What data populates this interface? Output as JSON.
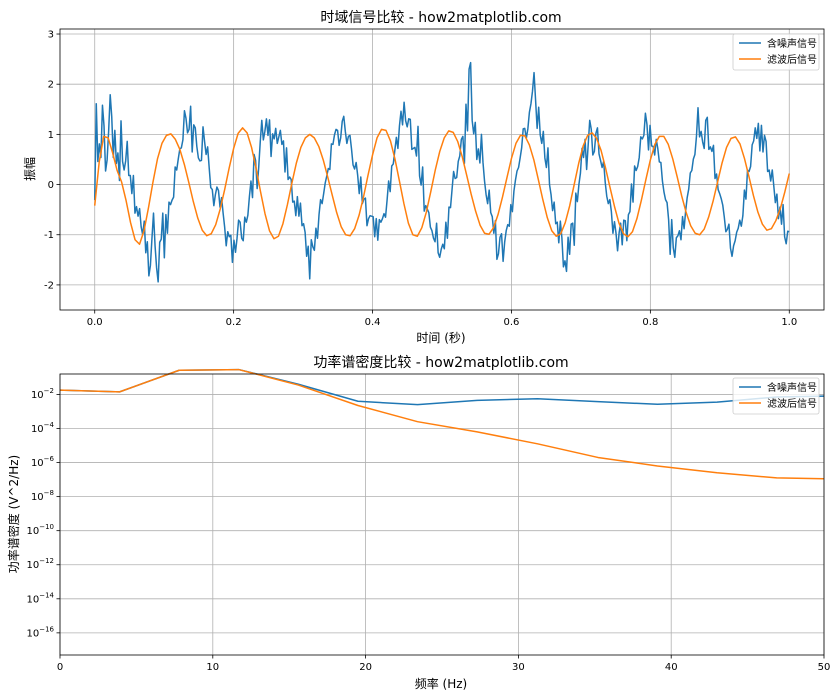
{
  "figure": {
    "top_title": "时域信号比较 - how2matplotlib.com",
    "bottom_title": "功率谱密度比较 - how2matplotlib.com"
  },
  "colors": {
    "noisy": "#1f77b4",
    "filtered": "#ff7f0e",
    "grid": "#b0b0b0"
  },
  "chart_data": [
    {
      "type": "line",
      "title": "时域信号比较 - how2matplotlib.com",
      "xlabel": "时间 (秒)",
      "ylabel": "振幅",
      "xlim": [
        -0.05,
        1.05
      ],
      "ylim": [
        -2.5,
        3.1
      ],
      "xticks": [
        0.0,
        0.2,
        0.4,
        0.6,
        0.8,
        1.0
      ],
      "xtick_labels": [
        "0.0",
        "0.2",
        "0.4",
        "0.6",
        "0.8",
        "1.0"
      ],
      "yticks": [
        -2,
        -1,
        0,
        1,
        2,
        3
      ],
      "ytick_labels": [
        "-2",
        "-1",
        "0",
        "1",
        "2",
        "3"
      ],
      "grid": true,
      "legend_position": "top-right",
      "series": [
        {
          "name": "含噪声信号",
          "color": "#1f77b4",
          "x_start": 0.0,
          "x_end": 1.0,
          "values": [
            -0.31,
            1.61,
            0.46,
            0.81,
            0.54,
            1.58,
            1.17,
            0.27,
            0.49,
            1.07,
            1.79,
            1.35,
            0.54,
            1.08,
            0.42,
            0.63,
            0.08,
            1.27,
            0.46,
            0.29,
            0.47,
            0.86,
            0.18,
            0.18,
            -0.18,
            0.18,
            -0.57,
            -0.44,
            -0.63,
            -0.48,
            -0.84,
            -1.0,
            -0.73,
            -1.36,
            -1.14,
            -1.82,
            -1.61,
            -1.07,
            -0.57,
            -1.22,
            -1.66,
            -1.94,
            -1.15,
            -1.09,
            -0.57,
            -1.46,
            -0.6,
            -0.97,
            -0.35,
            -0.4,
            -0.31,
            -0.25,
            0.35,
            0.29,
            0.51,
            0.71,
            0.73,
            0.89,
            1.47,
            1.32,
            1.03,
            1.1,
            1.56,
            0.65,
            1.19,
            1.13,
            0.76,
            0.53,
            0.47,
            0.48,
            1.15,
            0.86,
            0.6,
            0.75,
            0.33,
            -0.06,
            -0.1,
            -0.42,
            -0.2,
            -0.05,
            -0.12,
            -0.45,
            -0.26,
            -0.57,
            -0.85,
            -1.22,
            -0.94,
            -1.04,
            -1.01,
            -1.55,
            -1.11,
            -1.35,
            -1.07,
            -0.71,
            -0.75,
            -1.07,
            -1.12,
            -0.65,
            -0.75,
            -0.61,
            -0.24,
            0.07,
            -0.26,
            0.6,
            0.48,
            -0.08,
            0.34,
            0.85,
            1.28,
            0.89,
            1.06,
            1.31,
            0.98,
            1.29,
            0.56,
            1.01,
            0.91,
            1.12,
            0.82,
            0.95,
            1.08,
            0.8,
            0.87,
            0.25,
            0.73,
            0.1,
            0.15,
            0.1,
            -0.35,
            -0.33,
            -0.62,
            -0.24,
            -0.63,
            -0.37,
            -0.82,
            -0.78,
            -0.95,
            -1.43,
            -1.23,
            -1.88,
            -1.1,
            -1.24,
            -1.31,
            -0.87,
            -1.07,
            -0.6,
            -0.3,
            -0.38,
            -0.18,
            0.03,
            0.17,
            0.32,
            0.3,
            0.81,
            0.8,
            0.99,
            1.1,
            1.08,
            0.78,
            0.93,
            1.26,
            1.36,
            1.06,
            0.82,
            0.96,
            0.98,
            0.71,
            0.39,
            0.31,
            0.44,
            0.18,
            -0.18,
            0.15,
            -0.38,
            -0.29,
            -0.27,
            -0.82,
            -0.68,
            -0.62,
            -0.63,
            -0.64,
            -1.04,
            -0.68,
            -1.11,
            -0.7,
            -0.75,
            -0.68,
            -0.58,
            -0.65,
            -0.31,
            0.07,
            -0.14,
            0.37,
            0.41,
            0.68,
            0.94,
            0.72,
            1.17,
            1.46,
            1.19,
            1.64,
            1.27,
            1.15,
            1.31,
            1.3,
            0.7,
            0.72,
            0.74,
            0.57,
            1.16,
            0.17,
            -0.01,
            0.35,
            -0.53,
            -0.42,
            -0.49,
            -0.56,
            -0.85,
            -0.92,
            -1.07,
            -1.14,
            -0.77,
            -1.36,
            -1.45,
            -1.29,
            -1.19,
            -1.28,
            -0.75,
            -1.07,
            -0.45,
            -0.46,
            -0.1,
            0.26,
            0.12,
            0.14,
            0.46,
            0.57,
            0.9,
            0.96,
            0.42,
            1.6,
            1.07,
            2.3,
            2.43,
            1.28,
            1.01,
            1.24,
            0.5,
            0.71,
            0.43,
            1.0,
            0.44,
            0.07,
            -0.2,
            -0.38,
            -0.11,
            -0.56,
            -0.64,
            -0.97,
            -0.72,
            -1.49,
            -1.38,
            -1.05,
            -0.98,
            -1.53,
            -1.15,
            -0.92,
            -0.8,
            -0.83,
            -0.4,
            -0.54,
            -0.13,
            0.09,
            0.27,
            0.34,
            0.53,
            0.73,
            1.11,
            1.12,
            0.92,
            1.11,
            1.44,
            1.61,
            1.86,
            2.23,
            1.68,
            1.12,
            1.54,
            0.99,
            0.82,
            1.06,
            0.53,
            0.34,
            0.73,
            0.0,
            -0.2,
            -0.52,
            -0.35,
            -0.78,
            -0.75,
            -1.16,
            -0.73,
            -1.06,
            -1.64,
            -1.52,
            -1.73,
            -1.05,
            -1.39,
            -0.79,
            -0.77,
            -1.21,
            -0.17,
            -0.34,
            0.0,
            0.23,
            0.72,
            0.54,
            0.9,
            0.3,
            0.79,
            1.28,
            1.1,
            0.59,
            0.66,
            1.02,
            1.13,
            0.61,
            0.48,
            0.34,
            0.46,
            0.05,
            -0.23,
            -0.38,
            -0.3,
            -0.54,
            -0.97,
            -0.74,
            -0.97,
            -1.32,
            -0.96,
            -0.77,
            -1.2,
            -0.71,
            -0.72,
            -1.12,
            -0.6,
            -0.54,
            0.01,
            -0.35,
            0.37,
            0.28,
            0.36,
            0.54,
            0.95,
            0.91,
            0.98,
            1.42,
            1.2,
            0.69,
            1.18,
            0.77,
            0.76,
            0.59,
            0.9,
            0.72,
            0.45,
            0.44,
            0.07,
            -0.15,
            -0.3,
            -0.36,
            -0.7,
            -1.39,
            -0.7,
            -1.26,
            -1.45,
            -1.06,
            -1.02,
            -0.92,
            -1.1,
            -0.64,
            -0.88,
            -0.53,
            -0.26,
            -0.09,
            0.23,
            0.28,
            0.51,
            0.6,
            0.96,
            1.53,
            0.95,
            1.06,
            0.85,
            0.72,
            1.28,
            1.34,
            0.7,
            0.75,
            0.66,
            0.78,
            0.12,
            0.21,
            -0.1,
            -0.18,
            -0.28,
            -0.41,
            -0.65,
            -0.94,
            -0.89,
            -0.79,
            -1.27,
            -1.43,
            -1.22,
            -1.12,
            -0.95,
            -0.87,
            -0.71,
            -0.83,
            -0.62,
            -0.11,
            -0.29,
            0.29,
            0.26,
            0.36,
            0.79,
            0.87,
            1.13,
            0.92,
            1.22,
            0.67,
            1.18,
            0.65,
            0.98,
            0.86,
            0.26,
            0.29,
            0.07,
            0.29,
            -0.03,
            -0.36,
            -0.19,
            -0.68,
            -0.45,
            -0.79,
            -0.4,
            -1.04,
            -1.18,
            -0.93,
            -0.94
          ],
          "note": "values sampled evenly between x_start and x_end"
        },
        {
          "name": "滤波后信号",
          "color": "#ff7f0e",
          "x_start": 0.0,
          "x_end": 1.0,
          "values": [
            -0.42,
            0.45,
            0.96,
            0.93,
            0.63,
            0.28,
            0.05,
            -0.32,
            -0.76,
            -1.1,
            -1.19,
            -0.92,
            -0.46,
            0.05,
            0.51,
            0.82,
            0.98,
            1.01,
            0.9,
            0.7,
            0.4,
            0.04,
            -0.34,
            -0.67,
            -0.91,
            -1.02,
            -0.98,
            -0.8,
            -0.49,
            -0.1,
            0.33,
            0.72,
            1.02,
            1.13,
            1.03,
            0.74,
            0.33,
            -0.14,
            -0.58,
            -0.92,
            -1.08,
            -1.03,
            -0.78,
            -0.4,
            0.03,
            0.43,
            0.74,
            0.93,
            1.0,
            0.93,
            0.76,
            0.49,
            0.15,
            -0.21,
            -0.56,
            -0.84,
            -1.0,
            -1.02,
            -0.88,
            -0.61,
            -0.24,
            0.19,
            0.59,
            0.93,
            1.1,
            1.08,
            0.87,
            0.51,
            0.07,
            -0.38,
            -0.77,
            -1.0,
            -1.03,
            -0.86,
            -0.55,
            -0.14,
            0.29,
            0.66,
            0.93,
            1.07,
            1.04,
            0.86,
            0.56,
            0.19,
            -0.19,
            -0.53,
            -0.81,
            -0.97,
            -0.99,
            -0.86,
            -0.6,
            -0.25,
            0.14,
            0.52,
            0.82,
            0.98,
            0.97,
            0.79,
            0.49,
            0.1,
            -0.3,
            -0.66,
            -0.92,
            -1.03,
            -0.98,
            -0.76,
            -0.42,
            0.0,
            0.42,
            0.77,
            0.98,
            1.03,
            0.92,
            0.68,
            0.33,
            -0.06,
            -0.44,
            -0.77,
            -0.98,
            -1.04,
            -0.94,
            -0.68,
            -0.31,
            0.1,
            0.49,
            0.8,
            0.96,
            0.96,
            0.8,
            0.51,
            0.15,
            -0.23,
            -0.56,
            -0.82,
            -0.97,
            -1.0,
            -0.89,
            -0.65,
            -0.33,
            0.05,
            0.43,
            0.74,
            0.92,
            0.95,
            0.81,
            0.52,
            0.16,
            -0.22,
            -0.55,
            -0.79,
            -0.91,
            -0.88,
            -0.72,
            -0.48,
            -0.15,
            0.22
          ],
          "note": "values sampled evenly between x_start and x_end"
        }
      ]
    },
    {
      "type": "line",
      "title": "功率谱密度比较 - how2matplotlib.com",
      "xlabel": "频率 (Hz)",
      "ylabel": "功率谱密度 (V^2/Hz)",
      "xlim": [
        0,
        50
      ],
      "ylim_log10": [
        -17.3,
        -0.8
      ],
      "log_y": true,
      "xticks": [
        0,
        10,
        20,
        30,
        40,
        50
      ],
      "xtick_labels": [
        "0",
        "10",
        "20",
        "30",
        "40",
        "50"
      ],
      "yticks_exponent": [
        -16,
        -14,
        -12,
        -10,
        -8,
        -6,
        -4,
        -2
      ],
      "grid": true,
      "legend_position": "top-right",
      "series": [
        {
          "name": "含噪声信号",
          "color": "#1f77b4",
          "x": [
            0,
            3.9,
            7.8,
            11.7,
            15.6,
            19.5,
            23.4,
            27.3,
            31.25,
            35.2,
            39.1,
            43.0,
            46.9,
            50
          ],
          "log10_y": [
            -1.75,
            -1.85,
            -0.58,
            -0.54,
            -1.4,
            -2.4,
            -2.6,
            -2.35,
            -2.25,
            -2.42,
            -2.58,
            -2.45,
            -2.15,
            -2.1
          ]
        },
        {
          "name": "滤波后信号",
          "color": "#ff7f0e",
          "x": [
            0,
            3.9,
            7.8,
            11.7,
            15.6,
            19.5,
            23.4,
            27.3,
            31.25,
            35.2,
            39.1,
            43.0,
            46.9,
            50
          ],
          "log10_y": [
            -1.75,
            -1.85,
            -0.58,
            -0.54,
            -1.45,
            -2.65,
            -3.6,
            -4.2,
            -4.9,
            -5.7,
            -6.2,
            -6.6,
            -6.9,
            -6.95
          ]
        }
      ]
    }
  ]
}
